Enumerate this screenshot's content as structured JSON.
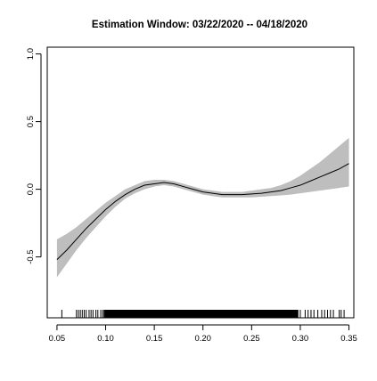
{
  "chart_data": {
    "type": "line",
    "title": "Estimation Window: 03/22/2020 -- 04/18/2020",
    "xlabel": "",
    "ylabel": "",
    "xlim": [
      0.04,
      0.355
    ],
    "ylim": [
      -0.95,
      1.05
    ],
    "x_ticks": [
      0.05,
      0.1,
      0.15,
      0.2,
      0.25,
      0.3,
      0.35
    ],
    "x_tick_labels": [
      "0.05",
      "0.10",
      "0.15",
      "0.20",
      "0.25",
      "0.30",
      "0.35"
    ],
    "y_ticks": [
      -0.5,
      0.0,
      0.5,
      1.0
    ],
    "y_tick_labels": [
      "-0.5",
      "0.0",
      "0.5",
      "1.0"
    ],
    "grid": false,
    "legend": "none",
    "series": [
      {
        "x": [
          0.05,
          0.06,
          0.07,
          0.08,
          0.09,
          0.1,
          0.11,
          0.12,
          0.13,
          0.14,
          0.15,
          0.16,
          0.17,
          0.18,
          0.19,
          0.2,
          0.21,
          0.22,
          0.23,
          0.24,
          0.25,
          0.26,
          0.27,
          0.28,
          0.29,
          0.3,
          0.31,
          0.32,
          0.33,
          0.34,
          0.35
        ],
        "y": [
          -0.52,
          -0.45,
          -0.37,
          -0.29,
          -0.22,
          -0.15,
          -0.09,
          -0.04,
          0.0,
          0.03,
          0.04,
          0.05,
          0.04,
          0.02,
          0.0,
          -0.02,
          -0.03,
          -0.04,
          -0.04,
          -0.04,
          -0.035,
          -0.03,
          -0.02,
          -0.01,
          0.01,
          0.03,
          0.06,
          0.09,
          0.12,
          0.15,
          0.19
        ],
        "lower": [
          -0.65,
          -0.55,
          -0.45,
          -0.36,
          -0.28,
          -0.2,
          -0.13,
          -0.07,
          -0.03,
          0.0,
          0.02,
          0.03,
          0.02,
          0.0,
          -0.02,
          -0.04,
          -0.05,
          -0.06,
          -0.06,
          -0.06,
          -0.06,
          -0.055,
          -0.05,
          -0.045,
          -0.04,
          -0.03,
          -0.02,
          -0.01,
          0.0,
          0.01,
          0.02
        ],
        "upper": [
          -0.37,
          -0.33,
          -0.28,
          -0.22,
          -0.16,
          -0.1,
          -0.05,
          0.0,
          0.03,
          0.06,
          0.07,
          0.07,
          0.06,
          0.04,
          0.02,
          0.0,
          -0.01,
          -0.02,
          -0.02,
          -0.02,
          -0.01,
          0.0,
          0.01,
          0.03,
          0.06,
          0.1,
          0.15,
          0.2,
          0.26,
          0.32,
          0.38
        ]
      }
    ],
    "rug": [
      0.055,
      0.07,
      0.072,
      0.074,
      0.076,
      0.078,
      0.08,
      0.083,
      0.085,
      0.087,
      0.09,
      0.092,
      0.095,
      0.097,
      0.3,
      0.305,
      0.308,
      0.311,
      0.314,
      0.318,
      0.322,
      0.325,
      0.328,
      0.331,
      0.334,
      0.34,
      0.342,
      0.345
    ]
  }
}
